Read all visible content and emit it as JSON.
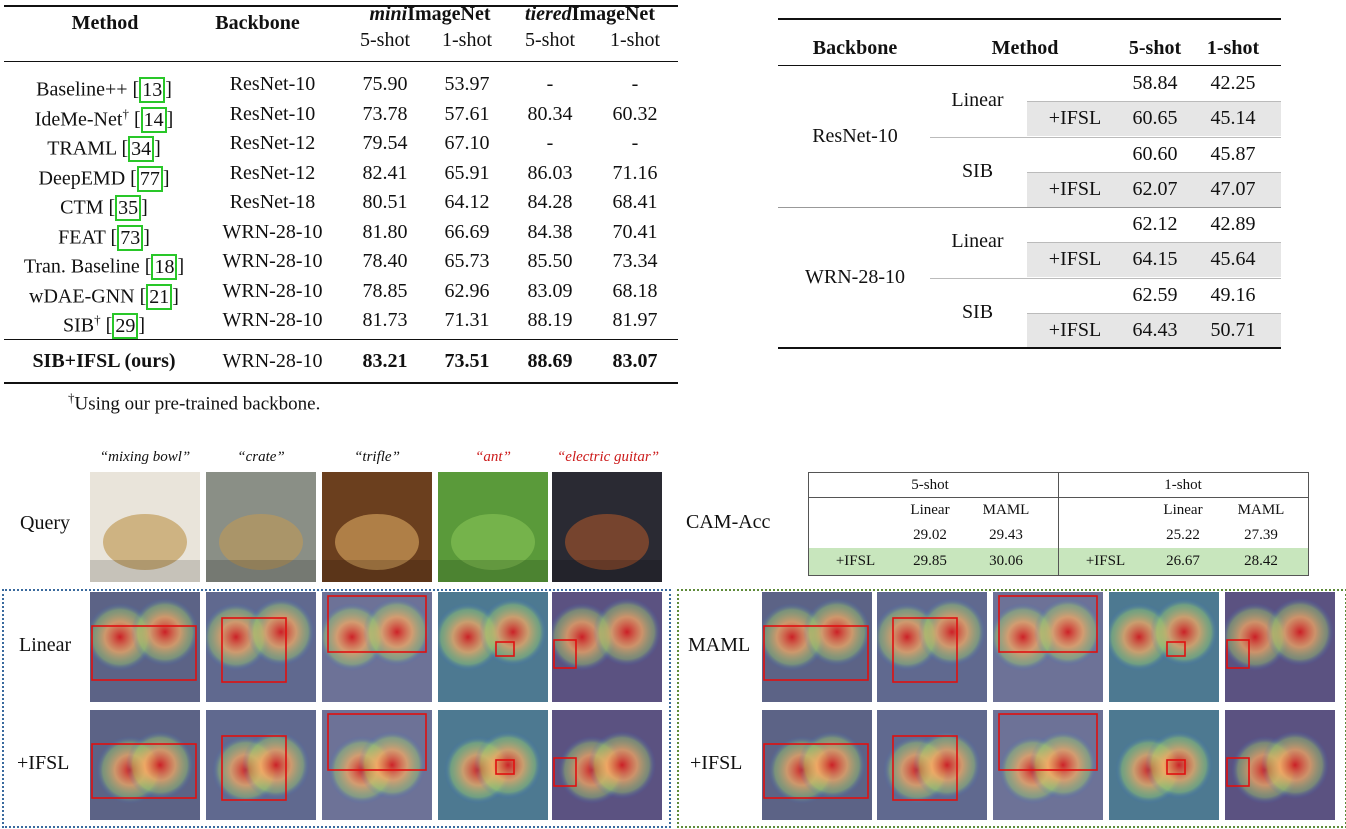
{
  "table1": {
    "header": {
      "method": "Method",
      "backbone": "Backbone",
      "mini_prefix": "mini",
      "mini_suffix": "ImageNet",
      "tiered_prefix": "tiered",
      "tiered_suffix": "ImageNet",
      "shot5": "5-shot",
      "shot1": "1-shot"
    },
    "rows": [
      {
        "name": "Baseline++ ",
        "sup": "",
        "ref": "13",
        "backbone": "ResNet-10",
        "m5": "75.90",
        "m1": "53.97",
        "t5": "-",
        "t1": "-"
      },
      {
        "name": "IdeMe-Net",
        "sup": "†",
        "ref": "14",
        "backbone": "ResNet-10",
        "m5": "73.78",
        "m1": "57.61",
        "t5": "80.34",
        "t1": "60.32"
      },
      {
        "name": "TRAML ",
        "sup": "",
        "ref": "34",
        "backbone": "ResNet-12",
        "m5": "79.54",
        "m1": "67.10",
        "t5": "-",
        "t1": "-"
      },
      {
        "name": "DeepEMD ",
        "sup": "",
        "ref": "77",
        "backbone": "ResNet-12",
        "m5": "82.41",
        "m1": "65.91",
        "t5": "86.03",
        "t1": "71.16"
      },
      {
        "name": "CTM ",
        "sup": "",
        "ref": "35",
        "backbone": "ResNet-18",
        "m5": "80.51",
        "m1": "64.12",
        "t5": "84.28",
        "t1": "68.41"
      },
      {
        "name": "FEAT ",
        "sup": "",
        "ref": "73",
        "backbone": "WRN-28-10",
        "m5": "81.80",
        "m1": "66.69",
        "t5": "84.38",
        "t1": "70.41"
      },
      {
        "name": "Tran. Baseline ",
        "sup": "",
        "ref": "18",
        "backbone": "WRN-28-10",
        "m5": "78.40",
        "m1": "65.73",
        "t5": "85.50",
        "t1": "73.34"
      },
      {
        "name": "wDAE-GNN ",
        "sup": "",
        "ref": "21",
        "backbone": "WRN-28-10",
        "m5": "78.85",
        "m1": "62.96",
        "t5": "83.09",
        "t1": "68.18"
      },
      {
        "name": "SIB",
        "sup": "†",
        "ref": "29",
        "backbone": "WRN-28-10",
        "m5": "81.73",
        "m1": "71.31",
        "t5": "88.19",
        "t1": "81.97"
      }
    ],
    "ours": {
      "name": "SIB+IFSL (ours)",
      "backbone": "WRN-28-10",
      "m5": "83.21",
      "m1": "73.51",
      "t5": "88.69",
      "t1": "83.07"
    },
    "footnote_mark": "†",
    "footnote": "Using our pre-trained backbone."
  },
  "table2": {
    "header": {
      "backbone": "Backbone",
      "method": "Method",
      "shot5": "5-shot",
      "shot1": "1-shot"
    },
    "groups": [
      {
        "backbone": "ResNet-10",
        "methods": [
          {
            "name": "Linear",
            "base": [
              "58.84",
              "42.25"
            ],
            "ifsl_label": "+IFSL",
            "ifsl": [
              "60.65",
              "45.14"
            ]
          },
          {
            "name": "SIB",
            "base": [
              "60.60",
              "45.87"
            ],
            "ifsl_label": "+IFSL",
            "ifsl": [
              "62.07",
              "47.07"
            ]
          }
        ]
      },
      {
        "backbone": "WRN-28-10",
        "methods": [
          {
            "name": "Linear",
            "base": [
              "62.12",
              "42.89"
            ],
            "ifsl_label": "+IFSL",
            "ifsl": [
              "64.15",
              "45.64"
            ]
          },
          {
            "name": "SIB",
            "base": [
              "62.59",
              "49.16"
            ],
            "ifsl_label": "+IFSL",
            "ifsl": [
              "64.43",
              "50.71"
            ]
          }
        ]
      }
    ]
  },
  "figure": {
    "captions": [
      {
        "text": "“mixing bowl”",
        "color": "#111111"
      },
      {
        "text": "“crate”",
        "color": "#111111"
      },
      {
        "text": "“trifle”",
        "color": "#111111"
      },
      {
        "text": "“ant”",
        "color": "#cc1a1a"
      },
      {
        "text": "“electric guitar”",
        "color": "#cc1a1a"
      }
    ],
    "row_labels": {
      "query": "Query",
      "linear": "Linear",
      "ifsl": "+IFSL",
      "maml": "MAML",
      "ifsl_right": "+IFSL"
    },
    "left_box_color": "#3a6a9e",
    "right_box_color": "#5f8b3a",
    "cam_label": "CAM-Acc"
  },
  "cam_table": {
    "shot5": "5-shot",
    "shot1": "1-shot",
    "col_linear": "Linear",
    "col_maml": "MAML",
    "base": {
      "s5_linear": "29.02",
      "s5_maml": "29.43",
      "s1_linear": "25.22",
      "s1_maml": "27.39"
    },
    "ifsl_label": "+IFSL",
    "ifsl": {
      "s5_linear": "29.85",
      "s5_maml": "30.06",
      "s1_linear": "26.67",
      "s1_maml": "28.42"
    }
  }
}
